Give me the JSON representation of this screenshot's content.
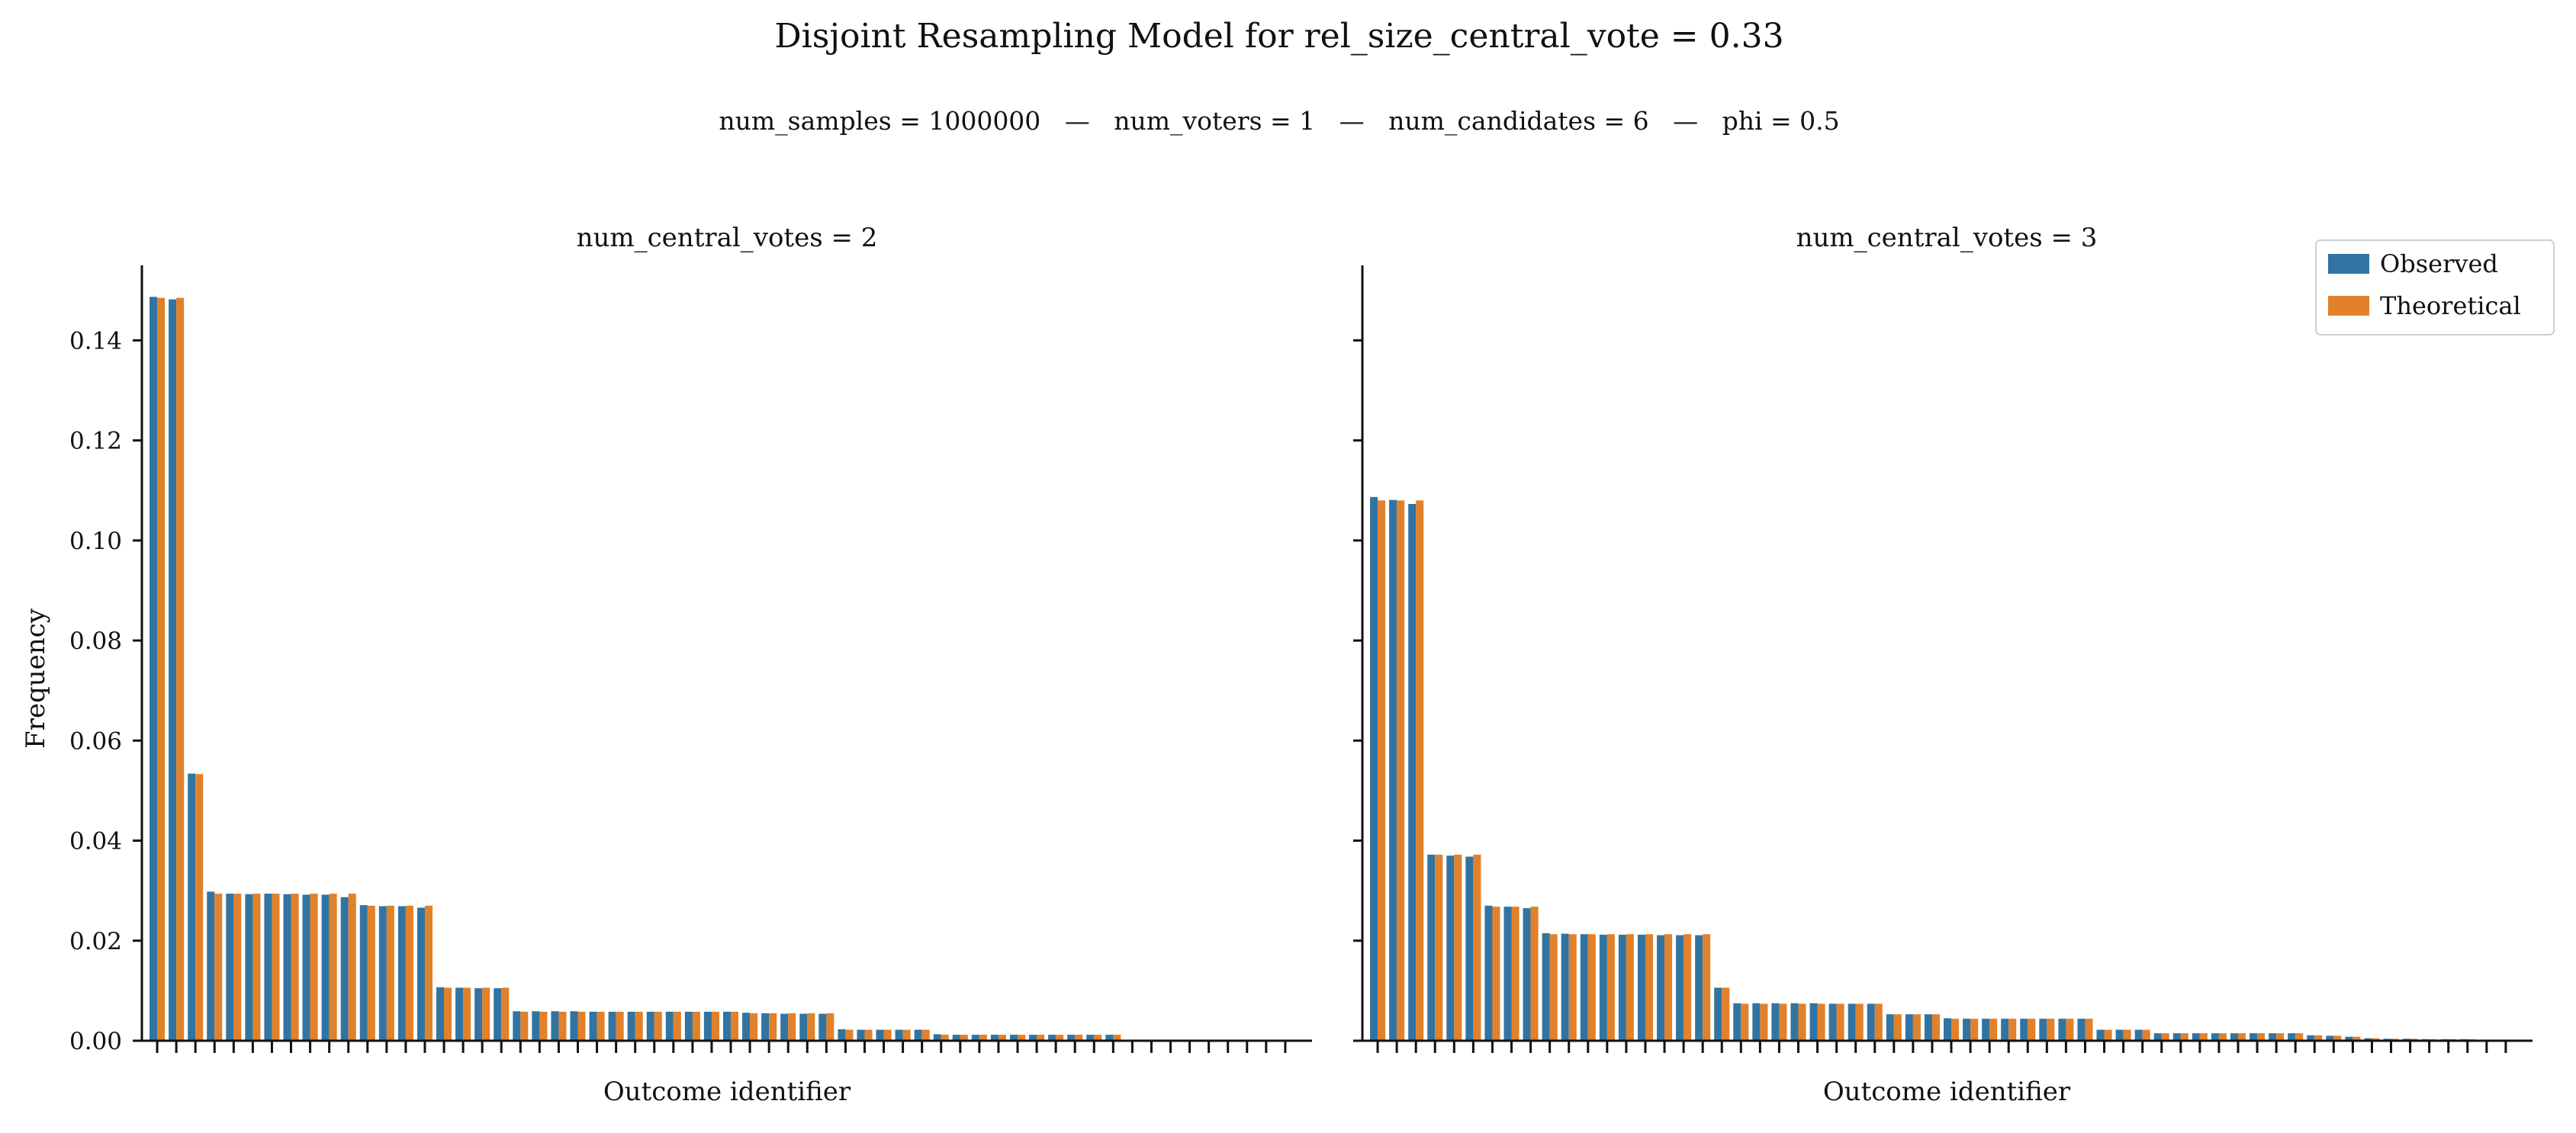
{
  "figure": {
    "title": "Disjoint Resampling Model for rel_size_central_vote = 0.33",
    "subtitle": "num_samples = 1000000   —   num_voters = 1   —   num_candidates = 6   —   phi = 0.5"
  },
  "legend": {
    "position": "top-right",
    "entries": [
      {
        "label": "Observed",
        "color": "#3274a1"
      },
      {
        "label": "Theoretical",
        "color": "#e1812c"
      }
    ]
  },
  "chart_data": [
    {
      "type": "bar",
      "title": "num_central_votes = 2",
      "xlabel": "Outcome identifier",
      "ylabel": "Frequency",
      "ylim": [
        0,
        0.155
      ],
      "yticks": [
        "0.00",
        "0.02",
        "0.04",
        "0.06",
        "0.08",
        "0.10",
        "0.12",
        "0.14"
      ],
      "num_outcomes": 60,
      "series": [
        {
          "name": "Observed",
          "color": "#3274a1",
          "values": [
            0.1487,
            0.1482,
            0.0534,
            0.0298,
            0.0294,
            0.0293,
            0.0294,
            0.0293,
            0.0292,
            0.0292,
            0.0287,
            0.0271,
            0.0269,
            0.0269,
            0.0266,
            0.0107,
            0.0106,
            0.0105,
            0.0105,
            0.0059,
            0.0059,
            0.0059,
            0.0059,
            0.0058,
            0.0058,
            0.0058,
            0.0058,
            0.0058,
            0.0058,
            0.0058,
            0.0058,
            0.0056,
            0.0055,
            0.0054,
            0.0054,
            0.0054,
            0.0023,
            0.0022,
            0.0022,
            0.0022,
            0.0022,
            0.0013,
            0.0012,
            0.0012,
            0.0012,
            0.0012,
            0.0012,
            0.0012,
            0.0012,
            0.0012,
            0.0012,
            0,
            0,
            0,
            0,
            0,
            0,
            0,
            0,
            0
          ]
        },
        {
          "name": "Theoretical",
          "color": "#e1812c",
          "values": [
            0.1485,
            0.1485,
            0.0533,
            0.0294,
            0.0294,
            0.0294,
            0.0294,
            0.0294,
            0.0294,
            0.0294,
            0.0294,
            0.027,
            0.027,
            0.027,
            0.027,
            0.0106,
            0.0106,
            0.0106,
            0.0106,
            0.0058,
            0.0058,
            0.0058,
            0.0058,
            0.0058,
            0.0058,
            0.0058,
            0.0058,
            0.0058,
            0.0058,
            0.0058,
            0.0058,
            0.0055,
            0.0055,
            0.0055,
            0.0055,
            0.0055,
            0.0022,
            0.0022,
            0.0022,
            0.0022,
            0.0022,
            0.0012,
            0.0012,
            0.0012,
            0.0012,
            0.0012,
            0.0012,
            0.0012,
            0.0012,
            0.0012,
            0.0012,
            0,
            0,
            0,
            0,
            0,
            0,
            0,
            0,
            0
          ]
        }
      ]
    },
    {
      "type": "bar",
      "title": "num_central_votes = 3",
      "xlabel": "Outcome identifier",
      "ylabel": "",
      "ylim": [
        0,
        0.155
      ],
      "num_outcomes": 60,
      "series": [
        {
          "name": "Observed",
          "color": "#3274a1",
          "values": [
            0.1087,
            0.1081,
            0.1073,
            0.0372,
            0.037,
            0.0368,
            0.027,
            0.0268,
            0.0265,
            0.0215,
            0.0214,
            0.0213,
            0.0212,
            0.0212,
            0.0212,
            0.0211,
            0.0211,
            0.0211,
            0.0106,
            0.0075,
            0.0075,
            0.0075,
            0.0075,
            0.0075,
            0.0074,
            0.0074,
            0.0074,
            0.0053,
            0.0053,
            0.0053,
            0.0045,
            0.0044,
            0.0044,
            0.0044,
            0.0044,
            0.0044,
            0.0044,
            0.0044,
            0.0022,
            0.0022,
            0.0022,
            0.0015,
            0.0015,
            0.0015,
            0.0015,
            0.0015,
            0.0015,
            0.0015,
            0.0015,
            0.0011,
            0.001,
            0.0008,
            0.0005,
            0.0004,
            0.0004,
            0.0003,
            0.0003,
            0.0003,
            0.0002,
            0.0002
          ]
        },
        {
          "name": "Theoretical",
          "color": "#e1812c",
          "values": [
            0.108,
            0.108,
            0.108,
            0.0372,
            0.0372,
            0.0372,
            0.0268,
            0.0268,
            0.0268,
            0.0213,
            0.0213,
            0.0213,
            0.0213,
            0.0213,
            0.0213,
            0.0213,
            0.0213,
            0.0213,
            0.0106,
            0.0074,
            0.0074,
            0.0074,
            0.0074,
            0.0074,
            0.0074,
            0.0074,
            0.0074,
            0.0053,
            0.0053,
            0.0053,
            0.0044,
            0.0044,
            0.0044,
            0.0044,
            0.0044,
            0.0044,
            0.0044,
            0.0044,
            0.0022,
            0.0022,
            0.0022,
            0.0015,
            0.0015,
            0.0015,
            0.0015,
            0.0015,
            0.0015,
            0.0015,
            0.0015,
            0.0011,
            0.001,
            0.0008,
            0.0005,
            0.0004,
            0.0004,
            0.0003,
            0.0003,
            0.0003,
            0.0002,
            0.0002
          ]
        }
      ]
    }
  ]
}
